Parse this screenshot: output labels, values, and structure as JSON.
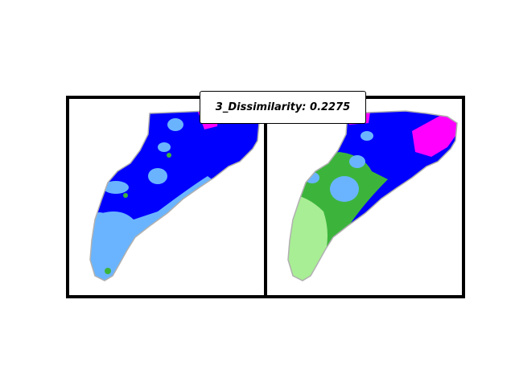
{
  "title": "3_Dissimilarity: 0.2275",
  "colors": {
    "blue": "#0000ff",
    "light_blue": "#6ab4ff",
    "green": "#3cb43c",
    "light_green": "#a8ee94",
    "magenta": "#ff00ff",
    "outline": "#b0b0b0"
  }
}
